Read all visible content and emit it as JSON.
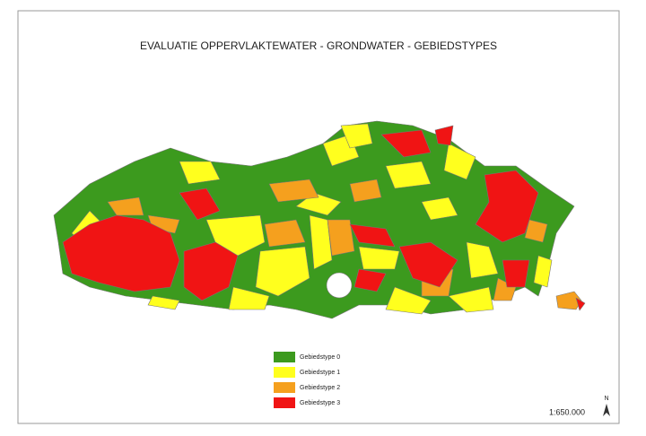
{
  "title": "EVALUATIE OPPERVLAKTEWATER - GRONDWATER - GEBIEDSTYPES",
  "legend": [
    {
      "label": "Gebiedstype 0",
      "color": "#3c9a1e"
    },
    {
      "label": "Gebiedstype 1",
      "color": "#ffff1e"
    },
    {
      "label": "Gebiedstype 2",
      "color": "#f5a01e"
    },
    {
      "label": "Gebiedstype 3",
      "color": "#f01414"
    }
  ],
  "scale": "1:650.000",
  "north": "N"
}
